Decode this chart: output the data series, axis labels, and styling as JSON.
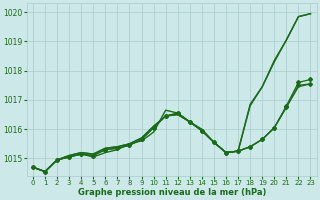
{
  "xlabel": "Graphe pression niveau de la mer (hPa)",
  "xlim": [
    -0.5,
    23.5
  ],
  "ylim": [
    1014.4,
    1020.3
  ],
  "yticks": [
    1015,
    1016,
    1017,
    1018,
    1019,
    1020
  ],
  "xticks": [
    0,
    1,
    2,
    3,
    4,
    5,
    6,
    7,
    8,
    9,
    10,
    11,
    12,
    13,
    14,
    15,
    16,
    17,
    18,
    19,
    20,
    21,
    22,
    23
  ],
  "bg_color": "#cde8e8",
  "grid_color": "#aacccc",
  "line_color": "#1a6b1a",
  "series": [
    {
      "x": [
        0,
        1,
        2,
        3,
        4,
        5,
        6,
        7,
        8,
        9,
        10,
        11,
        12,
        13,
        14,
        15,
        16,
        17,
        18,
        19,
        20,
        21,
        22,
        23
      ],
      "y": [
        1014.7,
        1014.55,
        1014.95,
        1015.05,
        1015.15,
        1015.05,
        1015.2,
        1015.3,
        1015.5,
        1015.6,
        1015.9,
        1016.65,
        1016.55,
        1016.25,
        1016.0,
        1015.55,
        1015.2,
        1015.25,
        1016.85,
        1017.45,
        1018.35,
        1019.05,
        1019.85,
        1019.95
      ],
      "marker": false,
      "lw": 1.0,
      "zorder": 2
    },
    {
      "x": [
        0,
        1,
        2,
        3,
        4,
        5,
        6,
        7,
        8,
        9,
        10,
        11,
        12,
        13,
        14,
        15,
        16,
        17,
        18,
        19,
        20,
        21,
        22,
        23
      ],
      "y": [
        1014.7,
        1014.55,
        1014.95,
        1015.05,
        1015.15,
        1015.1,
        1015.3,
        1015.35,
        1015.45,
        1015.65,
        1016.05,
        1016.45,
        1016.55,
        1016.25,
        1015.95,
        1015.55,
        1015.2,
        1015.25,
        1015.4,
        1015.65,
        1016.05,
        1016.8,
        1017.6,
        1017.7
      ],
      "marker": true,
      "lw": 0.9,
      "zorder": 3
    },
    {
      "x": [
        0,
        1,
        2,
        3,
        4,
        5,
        6,
        7,
        8,
        9,
        10,
        11,
        12,
        13,
        14,
        15,
        16,
        17,
        18,
        19,
        20,
        21,
        22,
        23
      ],
      "y": [
        1014.7,
        1014.55,
        1014.95,
        1015.05,
        1015.15,
        1015.1,
        1015.3,
        1015.35,
        1015.45,
        1015.65,
        1016.05,
        1016.45,
        1016.55,
        1016.25,
        1015.95,
        1015.55,
        1015.2,
        1015.25,
        1015.4,
        1015.65,
        1016.05,
        1016.75,
        1017.5,
        1017.55
      ],
      "marker": true,
      "lw": 0.9,
      "zorder": 3
    },
    {
      "x": [
        0,
        1,
        2,
        3,
        4,
        5,
        6,
        7,
        8,
        9,
        10,
        11,
        12,
        13,
        14,
        15,
        16,
        17,
        18,
        19,
        20,
        21,
        22,
        23
      ],
      "y": [
        1014.7,
        1014.55,
        1014.95,
        1015.1,
        1015.2,
        1015.15,
        1015.35,
        1015.4,
        1015.5,
        1015.7,
        1016.1,
        1016.45,
        1016.5,
        1016.25,
        1015.95,
        1015.55,
        1015.2,
        1015.25,
        1015.4,
        1015.65,
        1016.05,
        1016.75,
        1017.45,
        1017.55
      ],
      "marker": false,
      "lw": 0.9,
      "zorder": 2
    },
    {
      "x": [
        0,
        1,
        2,
        3,
        4,
        5,
        6,
        7,
        8,
        9,
        10,
        11,
        12,
        13,
        14,
        15,
        16,
        17,
        18,
        19,
        20,
        21,
        22,
        23
      ],
      "y": [
        1014.7,
        1014.55,
        1014.95,
        1015.1,
        1015.2,
        1015.15,
        1015.35,
        1015.4,
        1015.5,
        1015.7,
        1016.1,
        1016.45,
        1016.5,
        1016.25,
        1015.95,
        1015.55,
        1015.2,
        1015.25,
        1016.8,
        1017.45,
        1018.3,
        1019.05,
        1019.85,
        1019.95
      ],
      "marker": false,
      "lw": 1.0,
      "zorder": 2
    }
  ]
}
